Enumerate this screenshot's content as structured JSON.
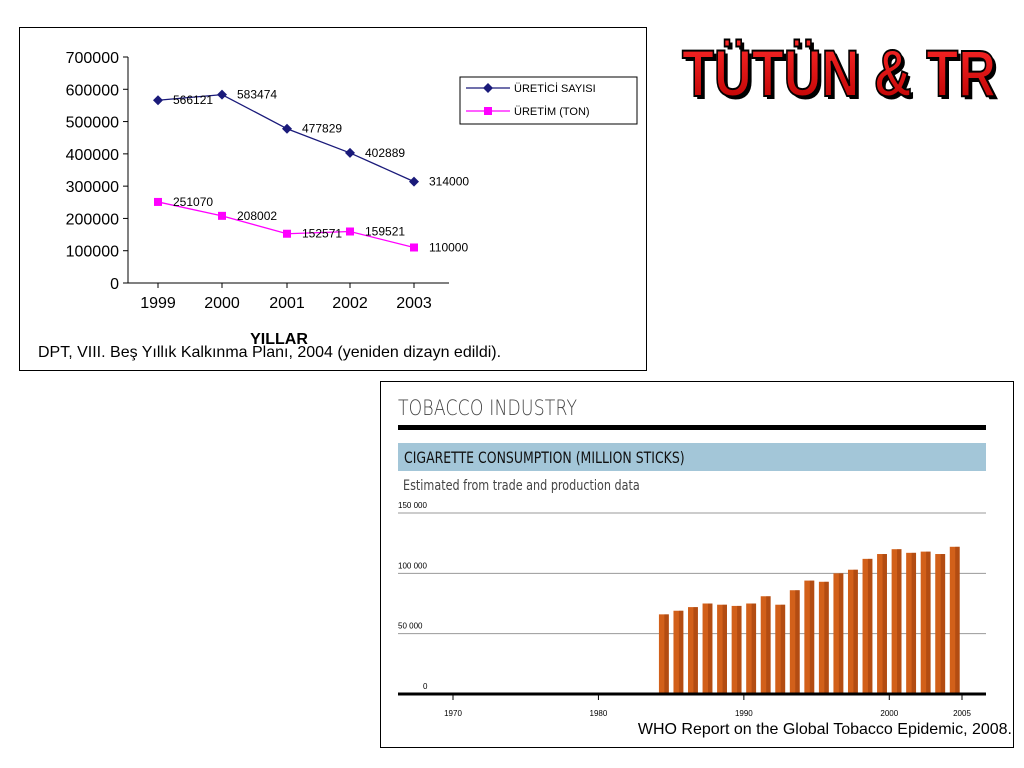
{
  "slide": {
    "title": "TÜTÜN & TR"
  },
  "chart_data": [
    {
      "type": "line",
      "xlabel": "YILLAR",
      "ylabel": "",
      "categories": [
        "1999",
        "2000",
        "2001",
        "2002",
        "2003"
      ],
      "ylim": [
        0,
        700000
      ],
      "yticks": [
        "0",
        "100000",
        "200000",
        "300000",
        "400000",
        "500000",
        "600000",
        "700000"
      ],
      "series": [
        {
          "name": "ÜRETİCİ SAYISI",
          "values": [
            566121,
            583474,
            477829,
            402889,
            314000
          ],
          "labels": [
            "566121",
            "583474",
            "477829",
            "402889",
            "314000"
          ],
          "color": "#1a1a7a",
          "marker": "diamond"
        },
        {
          "name": "ÜRETİM (TON)",
          "values": [
            251070,
            208002,
            152571,
            159521,
            110000
          ],
          "labels": [
            "251070",
            "208002",
            "152571",
            "159521",
            "110000"
          ],
          "color": "#ff00ff",
          "marker": "square"
        }
      ],
      "legend": "top-right",
      "caption": "DPT, VIII. Beş Yıllık Kalkınma Planı, 2004 (yeniden dizayn edildi)."
    },
    {
      "type": "bar",
      "header": "TOBACCO INDUSTRY",
      "title": "CIGARETTE CONSUMPTION (MILLION STICKS)",
      "subtitle": "Estimated from trade and production data",
      "x_start": 1970,
      "x_end": 2005,
      "x_tick_labels": [
        "1970",
        "1980",
        "1990",
        "2000",
        "2005"
      ],
      "ylim": [
        0,
        150000
      ],
      "y_tick_labels": [
        "0",
        "50 000",
        "100 000",
        "150 000"
      ],
      "grid": true,
      "bar_color": "#d2601a",
      "years": [
        1985,
        1986,
        1987,
        1988,
        1989,
        1990,
        1991,
        1992,
        1993,
        1994,
        1995,
        1996,
        1997,
        1998,
        1999,
        2000,
        2001,
        2002,
        2003,
        2004,
        2005
      ],
      "values": [
        66000,
        69000,
        72000,
        75000,
        74000,
        73000,
        75000,
        81000,
        74000,
        86000,
        94000,
        93000,
        100000,
        103000,
        112000,
        116000,
        120000,
        117000,
        118000,
        116000,
        122000
      ],
      "caption": "WHO Report on the Global Tobacco Epidemic, 2008."
    }
  ]
}
